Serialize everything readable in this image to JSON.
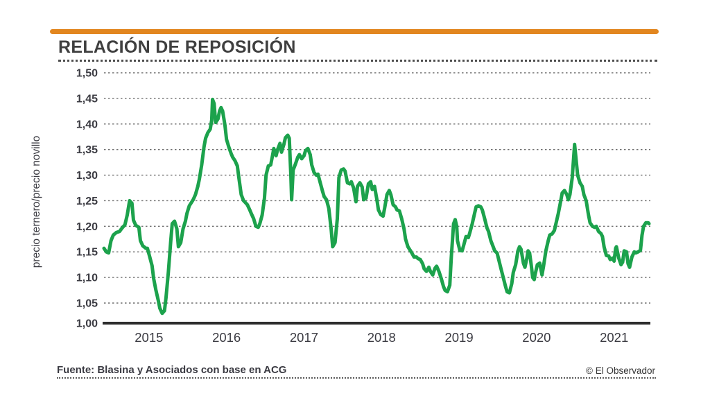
{
  "header": {
    "title": "RELACIÓN DE REPOSICIÓN",
    "accent_color": "#e2861f"
  },
  "footer": {
    "source": "Fuente: Blasina y Asociados con base en ACG",
    "credit": "© El Observador"
  },
  "chart_data": {
    "type": "line",
    "title": "RELACIÓN DE REPOSICIÓN",
    "xlabel": "",
    "ylabel": "precio ternero/precio novillo",
    "ylim": [
      1.0,
      1.5
    ],
    "xlim": [
      2014.42,
      2021.45
    ],
    "grid": "horizontal-dashed",
    "legend": "none",
    "line_color": "#1ca24c",
    "grid_color": "#6e6e6e",
    "axis_color": "#2d2d2d",
    "tick_color": "#3b3b42",
    "y_ticks": [
      {
        "value": 1.0,
        "label": "1,00"
      },
      {
        "value": 1.05,
        "label": "1,05"
      },
      {
        "value": 1.1,
        "label": "1,10"
      },
      {
        "value": 1.15,
        "label": "1,15"
      },
      {
        "value": 1.2,
        "label": "1,20"
      },
      {
        "value": 1.25,
        "label": "1,25"
      },
      {
        "value": 1.3,
        "label": "1,30"
      },
      {
        "value": 1.35,
        "label": "1,35"
      },
      {
        "value": 1.4,
        "label": "1,40"
      },
      {
        "value": 1.45,
        "label": "1,45"
      },
      {
        "value": 1.5,
        "label": "1,50"
      }
    ],
    "x_ticks": [
      {
        "value": 2015,
        "label": "2015"
      },
      {
        "value": 2016,
        "label": "2016"
      },
      {
        "value": 2017,
        "label": "2017"
      },
      {
        "value": 2018,
        "label": "2018"
      },
      {
        "value": 2019,
        "label": "2019"
      },
      {
        "value": 2020,
        "label": "2020"
      },
      {
        "value": 2021,
        "label": "2021"
      }
    ],
    "series": [
      {
        "name": "precio ternero/precio novillo",
        "points": [
          [
            2014.42,
            1.157
          ],
          [
            2014.45,
            1.15
          ],
          [
            2014.48,
            1.148
          ],
          [
            2014.51,
            1.172
          ],
          [
            2014.54,
            1.183
          ],
          [
            2014.58,
            1.188
          ],
          [
            2014.62,
            1.19
          ],
          [
            2014.65,
            1.196
          ],
          [
            2014.69,
            1.203
          ],
          [
            2014.72,
            1.222
          ],
          [
            2014.75,
            1.25
          ],
          [
            2014.78,
            1.245
          ],
          [
            2014.8,
            1.212
          ],
          [
            2014.83,
            1.202
          ],
          [
            2014.87,
            1.198
          ],
          [
            2014.89,
            1.172
          ],
          [
            2014.92,
            1.162
          ],
          [
            2014.96,
            1.157
          ],
          [
            2014.98,
            1.157
          ],
          [
            2015.01,
            1.14
          ],
          [
            2015.04,
            1.123
          ],
          [
            2015.06,
            1.098
          ],
          [
            2015.09,
            1.075
          ],
          [
            2015.12,
            1.055
          ],
          [
            2015.14,
            1.04
          ],
          [
            2015.17,
            1.03
          ],
          [
            2015.2,
            1.035
          ],
          [
            2015.22,
            1.06
          ],
          [
            2015.25,
            1.11
          ],
          [
            2015.28,
            1.17
          ],
          [
            2015.3,
            1.205
          ],
          [
            2015.33,
            1.21
          ],
          [
            2015.36,
            1.195
          ],
          [
            2015.38,
            1.16
          ],
          [
            2015.41,
            1.168
          ],
          [
            2015.44,
            1.195
          ],
          [
            2015.47,
            1.21
          ],
          [
            2015.49,
            1.225
          ],
          [
            2015.52,
            1.24
          ],
          [
            2015.55,
            1.247
          ],
          [
            2015.57,
            1.252
          ],
          [
            2015.6,
            1.262
          ],
          [
            2015.63,
            1.278
          ],
          [
            2015.65,
            1.292
          ],
          [
            2015.68,
            1.32
          ],
          [
            2015.71,
            1.355
          ],
          [
            2015.73,
            1.372
          ],
          [
            2015.76,
            1.383
          ],
          [
            2015.79,
            1.39
          ],
          [
            2015.81,
            1.408
          ],
          [
            2015.82,
            1.448
          ],
          [
            2015.84,
            1.44
          ],
          [
            2015.86,
            1.403
          ],
          [
            2015.89,
            1.41
          ],
          [
            2015.91,
            1.425
          ],
          [
            2015.93,
            1.432
          ],
          [
            2015.95,
            1.425
          ],
          [
            2015.98,
            1.398
          ],
          [
            2016.0,
            1.37
          ],
          [
            2016.03,
            1.355
          ],
          [
            2016.06,
            1.342
          ],
          [
            2016.08,
            1.335
          ],
          [
            2016.11,
            1.328
          ],
          [
            2016.14,
            1.318
          ],
          [
            2016.16,
            1.295
          ],
          [
            2016.19,
            1.262
          ],
          [
            2016.22,
            1.25
          ],
          [
            2016.24,
            1.247
          ],
          [
            2016.27,
            1.242
          ],
          [
            2016.3,
            1.232
          ],
          [
            2016.32,
            1.225
          ],
          [
            2016.35,
            1.215
          ],
          [
            2016.38,
            1.2
          ],
          [
            2016.41,
            1.198
          ],
          [
            2016.43,
            1.205
          ],
          [
            2016.46,
            1.222
          ],
          [
            2016.49,
            1.255
          ],
          [
            2016.51,
            1.3
          ],
          [
            2016.54,
            1.318
          ],
          [
            2016.57,
            1.32
          ],
          [
            2016.59,
            1.335
          ],
          [
            2016.61,
            1.352
          ],
          [
            2016.64,
            1.338
          ],
          [
            2016.66,
            1.35
          ],
          [
            2016.69,
            1.362
          ],
          [
            2016.71,
            1.345
          ],
          [
            2016.74,
            1.36
          ],
          [
            2016.76,
            1.373
          ],
          [
            2016.79,
            1.378
          ],
          [
            2016.81,
            1.372
          ],
          [
            2016.83,
            1.3
          ],
          [
            2016.84,
            1.252
          ],
          [
            2016.86,
            1.31
          ],
          [
            2016.89,
            1.322
          ],
          [
            2016.92,
            1.335
          ],
          [
            2016.94,
            1.34
          ],
          [
            2016.97,
            1.332
          ],
          [
            2017.0,
            1.338
          ],
          [
            2017.02,
            1.348
          ],
          [
            2017.05,
            1.352
          ],
          [
            2017.08,
            1.34
          ],
          [
            2017.1,
            1.32
          ],
          [
            2017.13,
            1.305
          ],
          [
            2017.16,
            1.3
          ],
          [
            2017.18,
            1.302
          ],
          [
            2017.21,
            1.285
          ],
          [
            2017.24,
            1.268
          ],
          [
            2017.26,
            1.258
          ],
          [
            2017.29,
            1.252
          ],
          [
            2017.32,
            1.235
          ],
          [
            2017.35,
            1.195
          ],
          [
            2017.37,
            1.16
          ],
          [
            2017.4,
            1.168
          ],
          [
            2017.43,
            1.215
          ],
          [
            2017.45,
            1.295
          ],
          [
            2017.48,
            1.31
          ],
          [
            2017.51,
            1.312
          ],
          [
            2017.53,
            1.308
          ],
          [
            2017.56,
            1.285
          ],
          [
            2017.59,
            1.283
          ],
          [
            2017.61,
            1.287
          ],
          [
            2017.64,
            1.275
          ],
          [
            2017.67,
            1.248
          ],
          [
            2017.69,
            1.278
          ],
          [
            2017.72,
            1.285
          ],
          [
            2017.75,
            1.277
          ],
          [
            2017.77,
            1.252
          ],
          [
            2017.8,
            1.255
          ],
          [
            2017.83,
            1.283
          ],
          [
            2017.86,
            1.287
          ],
          [
            2017.88,
            1.272
          ],
          [
            2017.91,
            1.278
          ],
          [
            2017.94,
            1.252
          ],
          [
            2017.96,
            1.232
          ],
          [
            2017.99,
            1.223
          ],
          [
            2018.02,
            1.22
          ],
          [
            2018.04,
            1.235
          ],
          [
            2018.07,
            1.262
          ],
          [
            2018.1,
            1.27
          ],
          [
            2018.12,
            1.262
          ],
          [
            2018.15,
            1.242
          ],
          [
            2018.18,
            1.238
          ],
          [
            2018.2,
            1.232
          ],
          [
            2018.23,
            1.23
          ],
          [
            2018.26,
            1.215
          ],
          [
            2018.29,
            1.195
          ],
          [
            2018.31,
            1.175
          ],
          [
            2018.34,
            1.16
          ],
          [
            2018.37,
            1.153
          ],
          [
            2018.39,
            1.148
          ],
          [
            2018.42,
            1.14
          ],
          [
            2018.45,
            1.14
          ],
          [
            2018.47,
            1.137
          ],
          [
            2018.5,
            1.135
          ],
          [
            2018.53,
            1.127
          ],
          [
            2018.55,
            1.117
          ],
          [
            2018.58,
            1.112
          ],
          [
            2018.61,
            1.12
          ],
          [
            2018.63,
            1.112
          ],
          [
            2018.66,
            1.105
          ],
          [
            2018.69,
            1.118
          ],
          [
            2018.71,
            1.122
          ],
          [
            2018.74,
            1.112
          ],
          [
            2018.77,
            1.098
          ],
          [
            2018.8,
            1.082
          ],
          [
            2018.82,
            1.075
          ],
          [
            2018.85,
            1.072
          ],
          [
            2018.88,
            1.085
          ],
          [
            2018.9,
            1.14
          ],
          [
            2018.93,
            1.205
          ],
          [
            2018.95,
            1.213
          ],
          [
            2018.97,
            1.2
          ],
          [
            2018.98,
            1.172
          ],
          [
            2019.01,
            1.153
          ],
          [
            2019.04,
            1.152
          ],
          [
            2019.06,
            1.163
          ],
          [
            2019.09,
            1.18
          ],
          [
            2019.12,
            1.178
          ],
          [
            2019.14,
            1.188
          ],
          [
            2019.17,
            1.205
          ],
          [
            2019.2,
            1.225
          ],
          [
            2019.22,
            1.238
          ],
          [
            2019.25,
            1.24
          ],
          [
            2019.28,
            1.238
          ],
          [
            2019.3,
            1.232
          ],
          [
            2019.33,
            1.215
          ],
          [
            2019.36,
            1.197
          ],
          [
            2019.38,
            1.19
          ],
          [
            2019.41,
            1.172
          ],
          [
            2019.44,
            1.16
          ],
          [
            2019.46,
            1.152
          ],
          [
            2019.49,
            1.148
          ],
          [
            2019.52,
            1.13
          ],
          [
            2019.54,
            1.118
          ],
          [
            2019.57,
            1.1
          ],
          [
            2019.6,
            1.082
          ],
          [
            2019.62,
            1.072
          ],
          [
            2019.65,
            1.07
          ],
          [
            2019.68,
            1.088
          ],
          [
            2019.7,
            1.11
          ],
          [
            2019.73,
            1.125
          ],
          [
            2019.76,
            1.152
          ],
          [
            2019.78,
            1.16
          ],
          [
            2019.8,
            1.155
          ],
          [
            2019.83,
            1.128
          ],
          [
            2019.85,
            1.12
          ],
          [
            2019.88,
            1.142
          ],
          [
            2019.89,
            1.152
          ],
          [
            2019.91,
            1.148
          ],
          [
            2019.93,
            1.125
          ],
          [
            2019.95,
            1.1
          ],
          [
            2019.97,
            1.096
          ],
          [
            2019.98,
            1.105
          ],
          [
            2020.01,
            1.125
          ],
          [
            2020.04,
            1.128
          ],
          [
            2020.07,
            1.105
          ],
          [
            2020.09,
            1.122
          ],
          [
            2020.12,
            1.152
          ],
          [
            2020.15,
            1.172
          ],
          [
            2020.17,
            1.183
          ],
          [
            2020.2,
            1.185
          ],
          [
            2020.23,
            1.192
          ],
          [
            2020.25,
            1.205
          ],
          [
            2020.28,
            1.225
          ],
          [
            2020.31,
            1.248
          ],
          [
            2020.33,
            1.265
          ],
          [
            2020.36,
            1.27
          ],
          [
            2020.39,
            1.262
          ],
          [
            2020.41,
            1.252
          ],
          [
            2020.43,
            1.262
          ],
          [
            2020.46,
            1.295
          ],
          [
            2020.49,
            1.36
          ],
          [
            2020.51,
            1.33
          ],
          [
            2020.53,
            1.3
          ],
          [
            2020.56,
            1.285
          ],
          [
            2020.59,
            1.278
          ],
          [
            2020.61,
            1.262
          ],
          [
            2020.64,
            1.25
          ],
          [
            2020.67,
            1.222
          ],
          [
            2020.69,
            1.207
          ],
          [
            2020.72,
            1.2
          ],
          [
            2020.75,
            1.198
          ],
          [
            2020.77,
            1.2
          ],
          [
            2020.8,
            1.19
          ],
          [
            2020.83,
            1.186
          ],
          [
            2020.85,
            1.18
          ],
          [
            2020.87,
            1.16
          ],
          [
            2020.9,
            1.143
          ],
          [
            2020.93,
            1.142
          ],
          [
            2020.95,
            1.135
          ],
          [
            2020.98,
            1.138
          ],
          [
            2021.0,
            1.132
          ],
          [
            2021.02,
            1.157
          ],
          [
            2021.03,
            1.16
          ],
          [
            2021.06,
            1.138
          ],
          [
            2021.09,
            1.125
          ],
          [
            2021.11,
            1.13
          ],
          [
            2021.13,
            1.152
          ],
          [
            2021.16,
            1.15
          ],
          [
            2021.18,
            1.127
          ],
          [
            2021.2,
            1.12
          ],
          [
            2021.23,
            1.14
          ],
          [
            2021.26,
            1.15
          ],
          [
            2021.28,
            1.148
          ],
          [
            2021.31,
            1.15
          ],
          [
            2021.34,
            1.153
          ],
          [
            2021.36,
            1.182
          ],
          [
            2021.38,
            1.2
          ],
          [
            2021.41,
            1.207
          ],
          [
            2021.44,
            1.207
          ],
          [
            2021.45,
            1.205
          ]
        ]
      }
    ]
  }
}
